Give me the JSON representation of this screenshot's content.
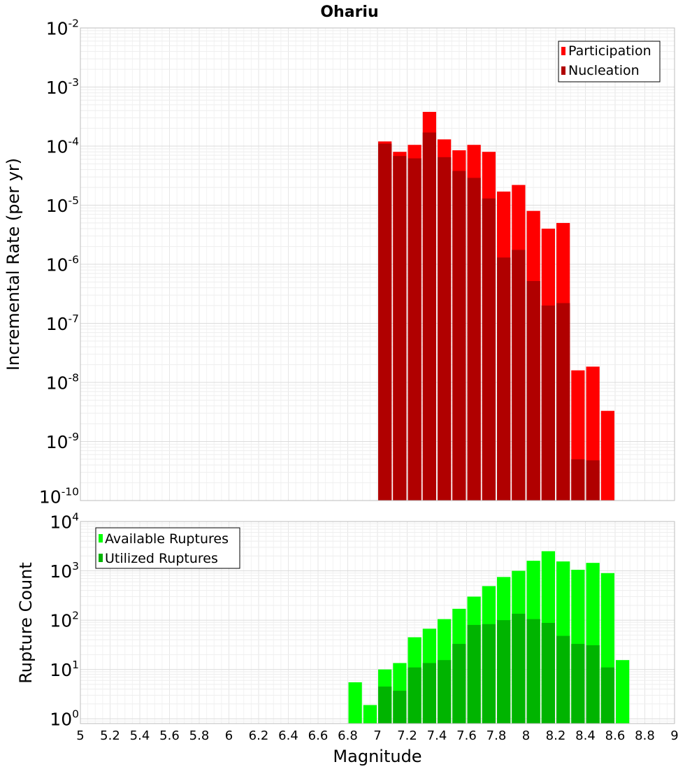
{
  "title": "Ohariu",
  "x_axis": {
    "label": "Magnitude",
    "min": 5,
    "max": 9,
    "ticks": [
      "5",
      "5.2",
      "5.4",
      "5.6",
      "5.8",
      "6",
      "6.2",
      "6.4",
      "6.6",
      "6.8",
      "7",
      "7.2",
      "7.4",
      "7.6",
      "7.8",
      "8",
      "8.2",
      "8.4",
      "8.6",
      "8.8",
      "9"
    ]
  },
  "chart_data": [
    {
      "type": "bar",
      "title": "Ohariu",
      "ylabel": "Incremental Rate (per yr)",
      "yscale": "log",
      "ylim": [
        1e-10,
        0.01
      ],
      "legend": "top-right",
      "grid": true,
      "x": [
        7.05,
        7.15,
        7.25,
        7.35,
        7.45,
        7.55,
        7.65,
        7.75,
        7.85,
        7.95,
        8.05,
        8.15,
        8.25,
        8.35,
        8.45,
        8.55
      ],
      "series": [
        {
          "name": "Participation",
          "color": "#ff0000",
          "values": [
            0.00012,
            8e-05,
            0.000105,
            0.00038,
            0.00013,
            8.5e-05,
            0.000105,
            8e-05,
            1.7e-05,
            2.2e-05,
            8e-06,
            4e-06,
            5e-06,
            1.6e-08,
            1.85e-08,
            3.3e-09
          ]
        },
        {
          "name": "Nucleation",
          "color": "#b00000",
          "values": [
            0.00011,
            6.8e-05,
            6.2e-05,
            0.00017,
            6.5e-05,
            3.8e-05,
            2.9e-05,
            1.3e-05,
            1.3e-06,
            1.75e-06,
            5.2e-07,
            2e-07,
            2.2e-07,
            5e-10,
            4.8e-10,
            null
          ]
        }
      ],
      "ytick_labels": [
        {
          "base": "10",
          "exp": "-2"
        },
        {
          "base": "10",
          "exp": "-3"
        },
        {
          "base": "10",
          "exp": "-4"
        },
        {
          "base": "10",
          "exp": "-5"
        },
        {
          "base": "10",
          "exp": "-6"
        },
        {
          "base": "10",
          "exp": "-7"
        },
        {
          "base": "10",
          "exp": "-8"
        },
        {
          "base": "10",
          "exp": "-9"
        },
        {
          "base": "10",
          "exp": "-10"
        }
      ]
    },
    {
      "type": "bar",
      "ylabel": "Rupture Count",
      "yscale": "log",
      "ylim": [
        0.8,
        10000
      ],
      "legend": "top-left",
      "grid": true,
      "x": [
        6.85,
        6.95,
        7.05,
        7.15,
        7.25,
        7.35,
        7.45,
        7.55,
        7.65,
        7.75,
        7.85,
        7.95,
        8.05,
        8.15,
        8.25,
        8.35,
        8.45,
        8.55,
        8.65
      ],
      "series": [
        {
          "name": "Available Ruptures",
          "color": "#00ff00",
          "values": [
            5.5,
            1.9,
            10,
            13.5,
            45,
            67,
            105,
            170,
            300,
            490,
            750,
            1000,
            1600,
            2500,
            1550,
            1050,
            1450,
            900,
            15.5
          ]
        },
        {
          "name": "Utilized Ruptures",
          "color": "#00b400",
          "values": [
            null,
            null,
            4.5,
            3.7,
            11,
            13.5,
            15.5,
            33,
            80,
            83,
            100,
            135,
            105,
            88,
            48,
            33,
            31,
            11,
            null
          ]
        }
      ],
      "ytick_labels": [
        {
          "base": "10",
          "exp": "4"
        },
        {
          "base": "10",
          "exp": "3"
        },
        {
          "base": "10",
          "exp": "2"
        },
        {
          "base": "10",
          "exp": "1"
        },
        {
          "base": "10",
          "exp": "0"
        }
      ]
    }
  ]
}
